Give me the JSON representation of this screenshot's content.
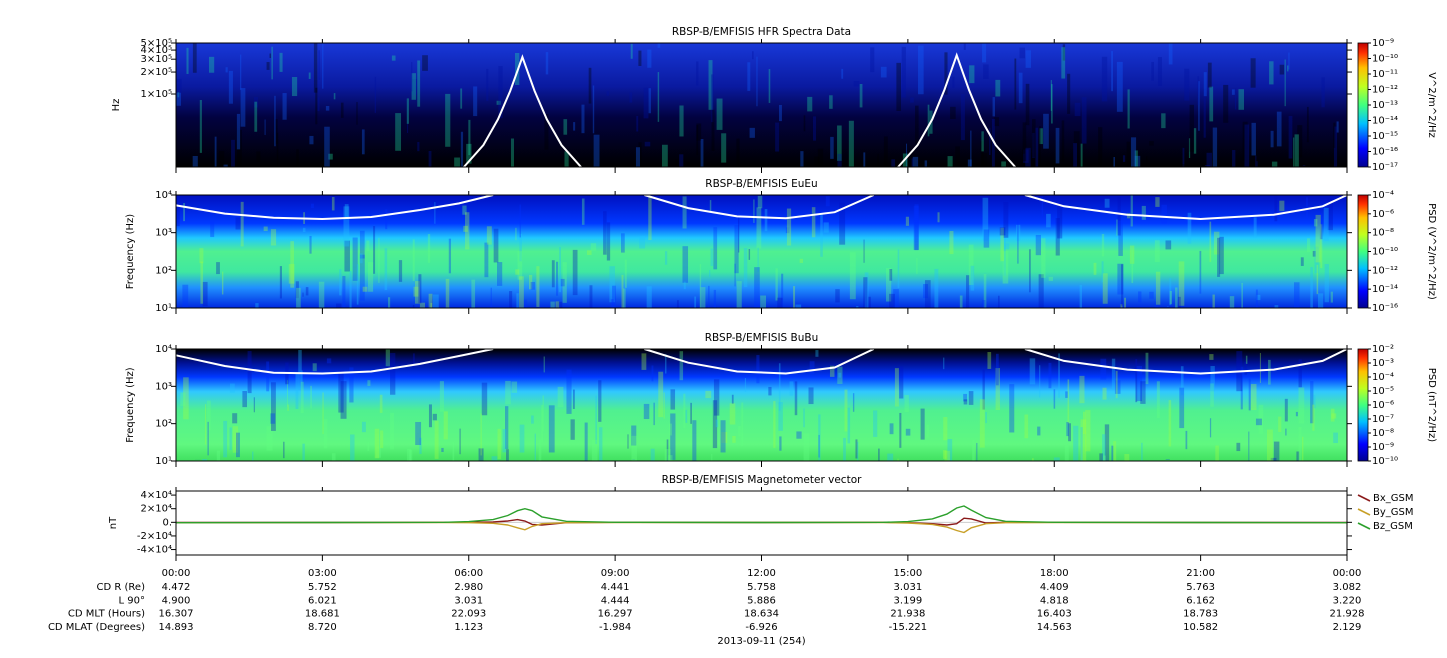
{
  "chart_data": [
    {
      "type": "spectrogram",
      "title": "RBSP-B/EMFISIS  HFR Spectra Data",
      "ylabel": "Hz",
      "ylog": true,
      "xlim": [
        0,
        24
      ],
      "ylim": [
        10000,
        500000
      ],
      "yticks": [
        {
          "value": 100000,
          "label": "1×10⁵"
        },
        {
          "value": 200000,
          "label": "2×10⁵"
        },
        {
          "value": 300000,
          "label": "3×10⁵"
        },
        {
          "value": 400000,
          "label": "4×10⁵"
        },
        {
          "value": 500000,
          "label": "5×10⁵"
        }
      ],
      "colorbar": {
        "label": "V^2/m^2/Hz",
        "log": true,
        "lim": [
          1e-17,
          1e-09
        ],
        "ticks": [
          {
            "value": 1e-09,
            "label": "10⁻⁹"
          },
          {
            "value": 1e-10,
            "label": "10⁻¹⁰"
          },
          {
            "value": 1e-11,
            "label": "10⁻¹¹"
          },
          {
            "value": 1e-12,
            "label": "10⁻¹²"
          },
          {
            "value": 1e-13,
            "label": "10⁻¹³"
          },
          {
            "value": 1e-14,
            "label": "10⁻¹⁴"
          },
          {
            "value": 1e-15,
            "label": "10⁻¹⁵"
          },
          {
            "value": 1e-16,
            "label": "10⁻¹⁶"
          },
          {
            "value": 1e-17,
            "label": "10⁻¹⁷"
          }
        ]
      },
      "curve": {
        "color": "#ffffff",
        "x": [
          5.9,
          6.3,
          6.6,
          6.85,
          7.1,
          7.35,
          7.6,
          7.9,
          8.3,
          11.5,
          14.8,
          15.2,
          15.5,
          15.75,
          16.0,
          16.25,
          16.5,
          16.8,
          17.2
        ],
        "values": [
          10000,
          20000,
          45000,
          110000,
          320000,
          110000,
          45000,
          20000,
          10000,
          null,
          10000,
          20000,
          45000,
          115000,
          340000,
          115000,
          45000,
          20000,
          10000
        ]
      }
    },
    {
      "type": "spectrogram",
      "title": "RBSP-B/EMFISIS  EuEu",
      "ylabel": "Frequency (Hz)",
      "ylog": true,
      "xlim": [
        0,
        24
      ],
      "ylim": [
        10,
        10000
      ],
      "yticks": [
        {
          "value": 10,
          "label": "10¹"
        },
        {
          "value": 100,
          "label": "10²"
        },
        {
          "value": 1000,
          "label": "10³"
        },
        {
          "value": 10000,
          "label": "10⁴"
        }
      ],
      "colorbar": {
        "label": "PSD (V^2/m^2/Hz)",
        "log": true,
        "lim": [
          1e-16,
          0.0001
        ],
        "ticks": [
          {
            "value": 0.0001,
            "label": "10⁻⁴"
          },
          {
            "value": 1e-06,
            "label": "10⁻⁶"
          },
          {
            "value": 1e-08,
            "label": "10⁻⁸"
          },
          {
            "value": 1e-10,
            "label": "10⁻¹⁰"
          },
          {
            "value": 1e-12,
            "label": "10⁻¹²"
          },
          {
            "value": 1e-14,
            "label": "10⁻¹⁴"
          },
          {
            "value": 1e-16,
            "label": "10⁻¹⁶"
          }
        ]
      },
      "curve": {
        "color": "#ffffff",
        "x": [
          0,
          1,
          2,
          3,
          4,
          5,
          5.8,
          6.5,
          7.5,
          9.6,
          10.5,
          11.5,
          12.5,
          13.5,
          14.3,
          15.5,
          17.4,
          18.2,
          19.5,
          21,
          22.5,
          23.5,
          24
        ],
        "values": [
          5300,
          3200,
          2500,
          2300,
          2600,
          4000,
          6000,
          10000,
          null,
          10000,
          4500,
          2700,
          2400,
          3500,
          10000,
          null,
          10000,
          5000,
          3000,
          2300,
          3000,
          5000,
          10000
        ]
      }
    },
    {
      "type": "spectrogram",
      "title": "RBSP-B/EMFISIS  BuBu",
      "ylabel": "Frequency (Hz)",
      "ylog": true,
      "xlim": [
        0,
        24
      ],
      "ylim": [
        10,
        10000
      ],
      "yticks": [
        {
          "value": 10,
          "label": "10¹"
        },
        {
          "value": 100,
          "label": "10²"
        },
        {
          "value": 1000,
          "label": "10³"
        },
        {
          "value": 10000,
          "label": "10⁴"
        }
      ],
      "colorbar": {
        "label": "PSD (nT^2/Hz)",
        "log": true,
        "lim": [
          1e-10,
          0.01
        ],
        "ticks": [
          {
            "value": 0.01,
            "label": "10⁻²"
          },
          {
            "value": 0.001,
            "label": "10⁻³"
          },
          {
            "value": 0.0001,
            "label": "10⁻⁴"
          },
          {
            "value": 1e-05,
            "label": "10⁻⁵"
          },
          {
            "value": 1e-06,
            "label": "10⁻⁶"
          },
          {
            "value": 1e-07,
            "label": "10⁻⁷"
          },
          {
            "value": 1e-08,
            "label": "10⁻⁸"
          },
          {
            "value": 1e-09,
            "label": "10⁻⁹"
          },
          {
            "value": 1e-10,
            "label": "10⁻¹⁰"
          }
        ]
      },
      "curve": {
        "color": "#ffffff",
        "x": [
          0,
          1,
          2,
          3,
          4,
          5,
          5.8,
          6.5,
          7.5,
          9.6,
          10.5,
          11.5,
          12.5,
          13.5,
          14.3,
          15.5,
          17.4,
          18.2,
          19.5,
          21,
          22.5,
          23.5,
          24
        ],
        "values": [
          6800,
          3500,
          2300,
          2200,
          2500,
          4000,
          6500,
          10000,
          null,
          10000,
          4300,
          2500,
          2200,
          3200,
          10000,
          null,
          10000,
          4800,
          2800,
          2200,
          2800,
          4800,
          10000
        ]
      }
    },
    {
      "type": "line",
      "title": "RBSP-B/EMFISIS  Magnetometer vector",
      "ylabel": "nT",
      "xlim": [
        0,
        24
      ],
      "ylim": [
        -48000,
        46000
      ],
      "xticks": [
        {
          "value": 0,
          "label": "00:00"
        },
        {
          "value": 3,
          "label": "03:00"
        },
        {
          "value": 6,
          "label": "06:00"
        },
        {
          "value": 9,
          "label": "09:00"
        },
        {
          "value": 12,
          "label": "12:00"
        },
        {
          "value": 15,
          "label": "15:00"
        },
        {
          "value": 18,
          "label": "18:00"
        },
        {
          "value": 21,
          "label": "21:00"
        },
        {
          "value": 24,
          "label": "00:00"
        }
      ],
      "yticks": [
        {
          "value": 40000,
          "label": "4×10⁴"
        },
        {
          "value": 20000,
          "label": "2×10⁴"
        },
        {
          "value": 0,
          "label": "0."
        },
        {
          "value": -20000,
          "label": "-2×10⁴"
        },
        {
          "value": -40000,
          "label": "-4×10⁴"
        }
      ],
      "x": [
        0,
        3,
        5.5,
        6,
        6.5,
        6.8,
        7.0,
        7.15,
        7.3,
        7.5,
        8,
        9,
        12,
        14.5,
        15,
        15.5,
        15.8,
        16.0,
        16.15,
        16.3,
        16.6,
        17,
        18,
        21,
        24
      ],
      "series": [
        {
          "name": "Bx_GSM",
          "color": "#8b1a1a",
          "values": [
            -300,
            -200,
            0,
            0,
            500,
            2000,
            4000,
            2000,
            -3000,
            -4000,
            -500,
            0,
            -200,
            0,
            -500,
            -2000,
            -4000,
            -2000,
            6000,
            5000,
            -1000,
            0,
            0,
            -200,
            -300
          ]
        },
        {
          "name": "By_GSM",
          "color": "#c8a028",
          "values": [
            -500,
            -400,
            -300,
            -500,
            -1500,
            -4000,
            -8000,
            -11000,
            -6000,
            -2000,
            -500,
            -300,
            -300,
            -300,
            -1000,
            -3000,
            -7000,
            -12000,
            -15000,
            -8000,
            -2000,
            -500,
            -300,
            -400,
            -500
          ]
        },
        {
          "name": "Bz_GSM",
          "color": "#2ca02c",
          "values": [
            -500,
            -300,
            0,
            1000,
            4000,
            10000,
            17000,
            20000,
            17000,
            8000,
            1500,
            0,
            -200,
            0,
            1000,
            5000,
            12000,
            21000,
            24000,
            18000,
            7000,
            1500,
            0,
            -300,
            -500
          ]
        }
      ],
      "ephemeris": [
        {
          "label": "CD R (Re)",
          "values": [
            "4.472",
            "5.752",
            "2.980",
            "4.441",
            "5.758",
            "3.031",
            "4.409",
            "5.763",
            "3.082"
          ]
        },
        {
          "label": "L 90°",
          "values": [
            "4.900",
            "6.021",
            "3.031",
            "4.444",
            "5.886",
            "3.199",
            "4.818",
            "6.162",
            "3.220"
          ]
        },
        {
          "label": "CD MLT (Hours)",
          "values": [
            "16.307",
            "18.681",
            "22.093",
            "16.297",
            "18.634",
            "21.938",
            "16.403",
            "18.783",
            "21.928"
          ]
        },
        {
          "label": "CD MLAT (Degrees)",
          "values": [
            "14.893",
            "8.720",
            "1.123",
            "-1.984",
            "-6.926",
            "-15.221",
            "14.563",
            "10.582",
            "2.129"
          ]
        }
      ],
      "date": "2013-09-11 (254)"
    }
  ]
}
